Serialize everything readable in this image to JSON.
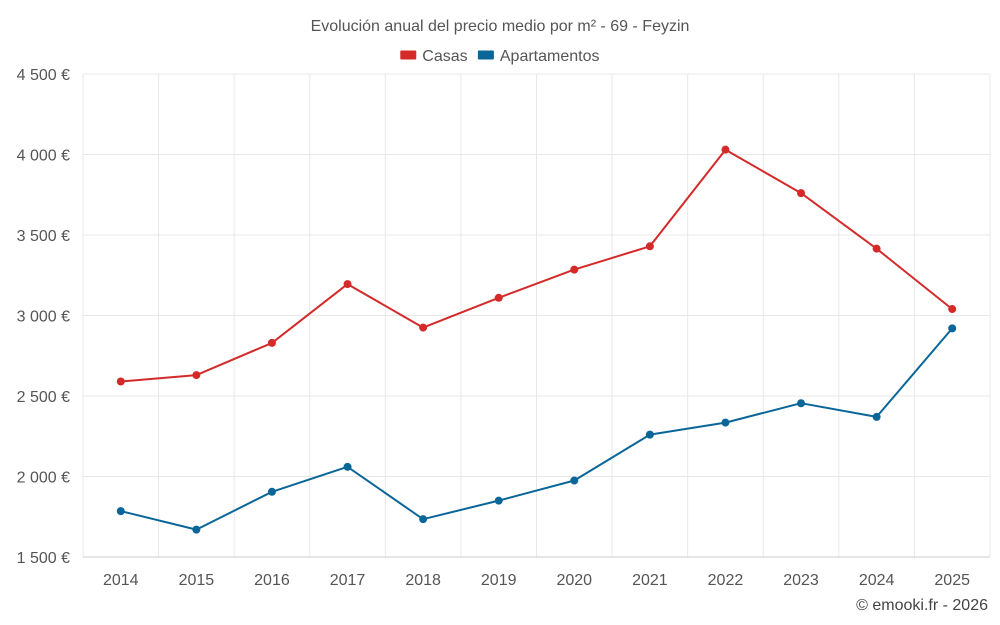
{
  "chart_data": {
    "type": "line",
    "title": "Evolución anual del precio medio por m² - 69 - Feyzin",
    "categories": [
      "2014",
      "2015",
      "2016",
      "2017",
      "2018",
      "2019",
      "2020",
      "2021",
      "2022",
      "2023",
      "2024",
      "2025"
    ],
    "series": [
      {
        "name": "Casas",
        "color": "#d42a2a",
        "values": [
          2590,
          2630,
          2830,
          3195,
          2925,
          3110,
          3285,
          3430,
          4030,
          3760,
          3415,
          3040
        ]
      },
      {
        "name": "Apartamentos",
        "color": "#0a6699",
        "values": [
          1785,
          1670,
          1905,
          2060,
          1735,
          1850,
          1975,
          2260,
          2335,
          2455,
          2370,
          2920
        ]
      }
    ],
    "ylim": [
      1500,
      4500
    ],
    "yticks": [
      1500,
      2000,
      2500,
      3000,
      3500,
      4000,
      4500
    ],
    "ytick_labels": [
      "1 500 €",
      "2 000 €",
      "2 500 €",
      "3 000 €",
      "3 500 €",
      "4 000 €",
      "4 500 €"
    ],
    "xlabel": "",
    "ylabel": "",
    "grid": true,
    "legend_position": "top-center"
  },
  "credit": "© emooki.fr - 2026"
}
